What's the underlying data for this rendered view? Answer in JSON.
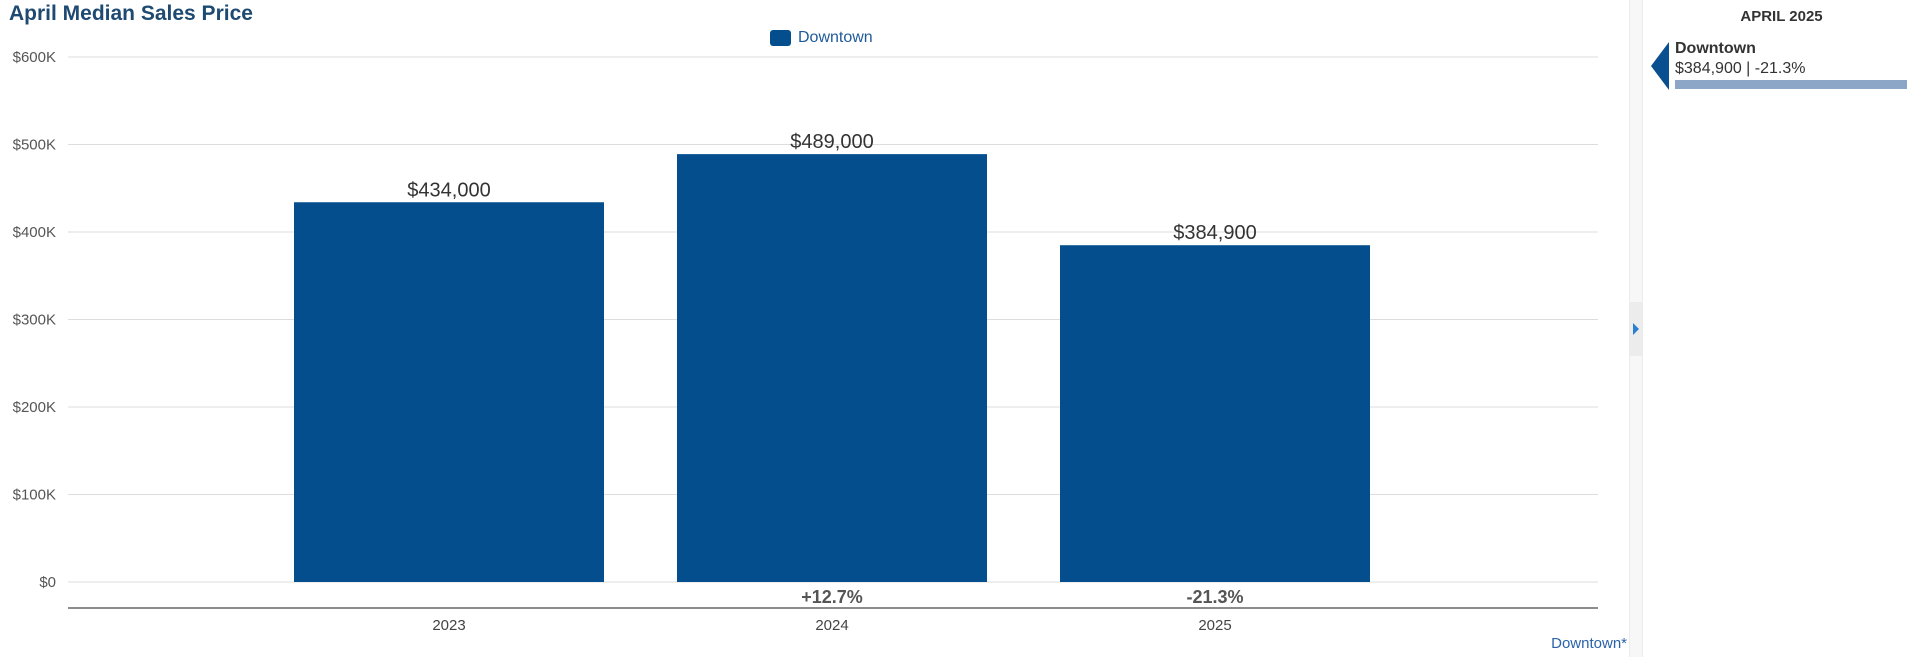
{
  "chart_data": {
    "type": "bar",
    "title": "April Median Sales Price",
    "categories": [
      "2023",
      "2024",
      "2025"
    ],
    "series": [
      {
        "name": "Downtown",
        "color": "#044e8e",
        "values": [
          434000,
          489000,
          384900
        ]
      }
    ],
    "value_labels": [
      "$434,000",
      "$489,000",
      "$384,900"
    ],
    "change_labels": [
      "",
      "+12.7%",
      "-21.3%"
    ],
    "ylim": [
      0,
      600000
    ],
    "yticks": [
      0,
      100000,
      200000,
      300000,
      400000,
      500000,
      600000
    ],
    "ytick_labels": [
      "$0",
      "$100K",
      "$200K",
      "$300K",
      "$400K",
      "$500K",
      "$600K"
    ],
    "grid": true,
    "legend_position": "top-center"
  },
  "footer_note": "Downtown*",
  "side_panel": {
    "title": "APRIL 2025",
    "item_name": "Downtown",
    "item_value": "$384,900 | -21.3%"
  }
}
